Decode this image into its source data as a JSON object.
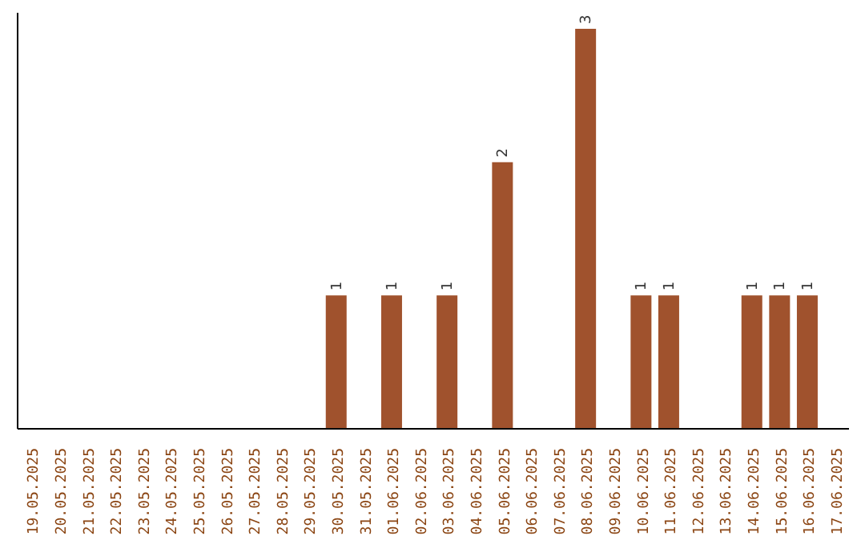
{
  "chart_data": {
    "type": "bar",
    "categories": [
      "19.05.2025",
      "20.05.2025",
      "21.05.2025",
      "22.05.2025",
      "23.05.2025",
      "24.05.2025",
      "25.05.2025",
      "26.05.2025",
      "27.05.2025",
      "28.05.2025",
      "29.05.2025",
      "30.05.2025",
      "31.05.2025",
      "01.06.2025",
      "02.06.2025",
      "03.06.2025",
      "04.06.2025",
      "05.06.2025",
      "06.06.2025",
      "07.06.2025",
      "08.06.2025",
      "09.06.2025",
      "10.06.2025",
      "11.06.2025",
      "12.06.2025",
      "13.06.2025",
      "14.06.2025",
      "15.06.2025",
      "16.06.2025",
      "17.06.2025"
    ],
    "values": [
      0,
      0,
      0,
      0,
      0,
      0,
      0,
      0,
      0,
      0,
      0,
      1,
      0,
      1,
      0,
      1,
      0,
      2,
      0,
      0,
      3,
      0,
      1,
      1,
      0,
      0,
      1,
      1,
      1,
      0
    ],
    "value_labels": [
      null,
      null,
      null,
      null,
      null,
      null,
      null,
      null,
      null,
      null,
      null,
      "1",
      null,
      "1",
      null,
      "1",
      null,
      "2",
      null,
      null,
      "3",
      null,
      "1",
      "1",
      null,
      null,
      "1",
      "1",
      "1",
      null
    ],
    "color": "#a0522d",
    "relative": false,
    "grid": false,
    "legend": false
  }
}
